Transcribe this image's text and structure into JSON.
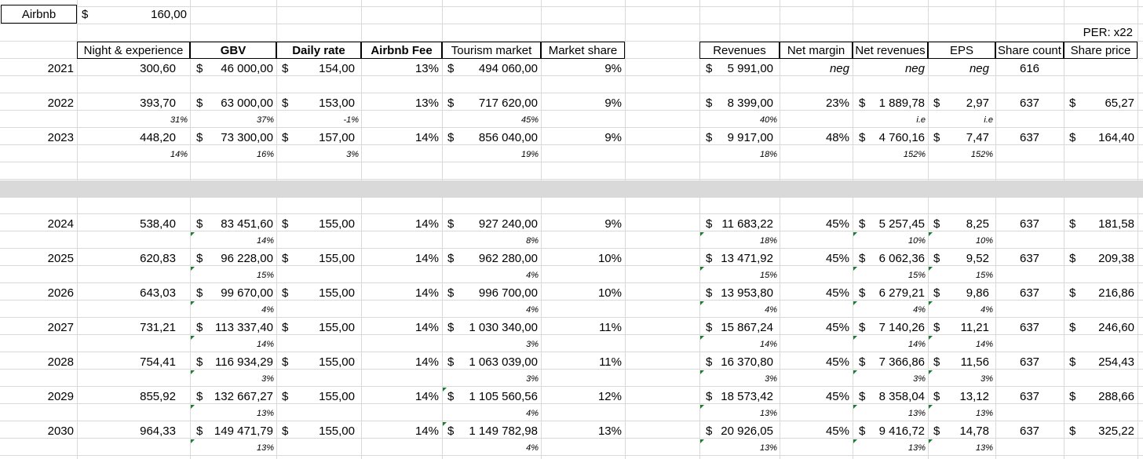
{
  "top": {
    "name": "Airbnb",
    "currency": "$",
    "price": "160,00",
    "per_label": "PER: x22"
  },
  "headers": {
    "nights": "Night & experience",
    "gbv": "GBV",
    "daily_rate": "Daily rate",
    "fee": "Airbnb Fee",
    "tourism": "Tourism market",
    "share": "Market share",
    "revenues": "Revenues",
    "net_margin": "Net margin",
    "net_revenues": "Net revenues",
    "eps": "EPS",
    "share_count": "Share count",
    "share_price": "Share price"
  },
  "currency": "$",
  "rows": [
    {
      "year": "2021",
      "nights": "300,60",
      "gbv": "46 000,00",
      "daily_rate": "154,00",
      "fee": "13%",
      "tourism": "494 060,00",
      "share": "9%",
      "revenues": "5 991,00",
      "net_margin": "neg",
      "net_revenues": "neg",
      "eps": "neg",
      "share_count": "616",
      "share_price": "",
      "g_nights": "",
      "g_gbv": "",
      "g_rate": "",
      "g_tourism": "",
      "g_rev": "",
      "g_netrev": "",
      "g_eps": ""
    },
    {
      "year": "2022",
      "nights": "393,70",
      "gbv": "63 000,00",
      "daily_rate": "153,00",
      "fee": "13%",
      "tourism": "717 620,00",
      "share": "9%",
      "revenues": "8 399,00",
      "net_margin": "23%",
      "net_revenues": "1 889,78",
      "eps": "2,97",
      "share_count": "637",
      "share_price": "65,27",
      "g_nights": "31%",
      "g_gbv": "37%",
      "g_rate": "-1%",
      "g_tourism": "45%",
      "g_rev": "40%",
      "g_netrev": "i.e",
      "g_eps": "i.e"
    },
    {
      "year": "2023",
      "nights": "448,20",
      "gbv": "73 300,00",
      "daily_rate": "157,00",
      "fee": "14%",
      "tourism": "856 040,00",
      "share": "9%",
      "revenues": "9 917,00",
      "net_margin": "48%",
      "net_revenues": "4 760,16",
      "eps": "7,47",
      "share_count": "637",
      "share_price": "164,40",
      "g_nights": "14%",
      "g_gbv": "16%",
      "g_rate": "3%",
      "g_tourism": "19%",
      "g_rev": "18%",
      "g_netrev": "152%",
      "g_eps": "152%"
    },
    {
      "year": "2024",
      "nights": "538,40",
      "gbv": "83 451,60",
      "daily_rate": "155,00",
      "fee": "14%",
      "tourism": "927 240,00",
      "share": "9%",
      "revenues": "11 683,22",
      "net_margin": "45%",
      "net_revenues": "5 257,45",
      "eps": "8,25",
      "share_count": "637",
      "share_price": "181,58",
      "g_nights": "",
      "g_gbv": "14%",
      "g_rate": "",
      "g_tourism": "8%",
      "g_rev": "18%",
      "g_netrev": "10%",
      "g_eps": "10%"
    },
    {
      "year": "2025",
      "nights": "620,83",
      "gbv": "96 228,00",
      "daily_rate": "155,00",
      "fee": "14%",
      "tourism": "962 280,00",
      "share": "10%",
      "revenues": "13 471,92",
      "net_margin": "45%",
      "net_revenues": "6 062,36",
      "eps": "9,52",
      "share_count": "637",
      "share_price": "209,38",
      "g_nights": "",
      "g_gbv": "15%",
      "g_rate": "",
      "g_tourism": "4%",
      "g_rev": "15%",
      "g_netrev": "15%",
      "g_eps": "15%"
    },
    {
      "year": "2026",
      "nights": "643,03",
      "gbv": "99 670,00",
      "daily_rate": "155,00",
      "fee": "14%",
      "tourism": "996 700,00",
      "share": "10%",
      "revenues": "13 953,80",
      "net_margin": "45%",
      "net_revenues": "6 279,21",
      "eps": "9,86",
      "share_count": "637",
      "share_price": "216,86",
      "g_nights": "",
      "g_gbv": "4%",
      "g_rate": "",
      "g_tourism": "4%",
      "g_rev": "4%",
      "g_netrev": "4%",
      "g_eps": "4%"
    },
    {
      "year": "2027",
      "nights": "731,21",
      "gbv": "113 337,40",
      "daily_rate": "155,00",
      "fee": "14%",
      "tourism": "1 030 340,00",
      "share": "11%",
      "revenues": "15 867,24",
      "net_margin": "45%",
      "net_revenues": "7 140,26",
      "eps": "11,21",
      "share_count": "637",
      "share_price": "246,60",
      "g_nights": "",
      "g_gbv": "14%",
      "g_rate": "",
      "g_tourism": "3%",
      "g_rev": "14%",
      "g_netrev": "14%",
      "g_eps": "14%"
    },
    {
      "year": "2028",
      "nights": "754,41",
      "gbv": "116 934,29",
      "daily_rate": "155,00",
      "fee": "14%",
      "tourism": "1 063 039,00",
      "share": "11%",
      "revenues": "16 370,80",
      "net_margin": "45%",
      "net_revenues": "7 366,86",
      "eps": "11,56",
      "share_count": "637",
      "share_price": "254,43",
      "g_nights": "",
      "g_gbv": "3%",
      "g_rate": "",
      "g_tourism": "3%",
      "g_rev": "3%",
      "g_netrev": "3%",
      "g_eps": "3%"
    },
    {
      "year": "2029",
      "nights": "855,92",
      "gbv": "132 667,27",
      "daily_rate": "155,00",
      "fee": "14%",
      "tourism": "1 105 560,56",
      "share": "12%",
      "revenues": "18 573,42",
      "net_margin": "45%",
      "net_revenues": "8 358,04",
      "eps": "13,12",
      "share_count": "637",
      "share_price": "288,66",
      "g_nights": "",
      "g_gbv": "13%",
      "g_rate": "",
      "g_tourism": "4%",
      "g_rev": "13%",
      "g_netrev": "13%",
      "g_eps": "13%"
    },
    {
      "year": "2030",
      "nights": "964,33",
      "gbv": "149 471,79",
      "daily_rate": "155,00",
      "fee": "14%",
      "tourism": "1 149 782,98",
      "share": "13%",
      "revenues": "20 926,05",
      "net_margin": "45%",
      "net_revenues": "9 416,72",
      "eps": "14,78",
      "share_count": "637",
      "share_price": "325,22",
      "g_nights": "",
      "g_gbv": "13%",
      "g_rate": "",
      "g_tourism": "4%",
      "g_rev": "13%",
      "g_netrev": "13%",
      "g_eps": "13%"
    }
  ]
}
